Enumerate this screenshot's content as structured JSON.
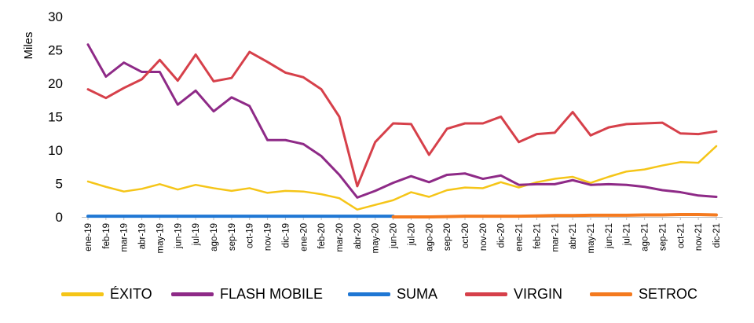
{
  "chart_data": {
    "type": "line",
    "ylabel": "Miles",
    "ylim": [
      0,
      30
    ],
    "yticks": [
      "0",
      "5",
      "10",
      "15",
      "20",
      "25",
      "30"
    ],
    "grid": false,
    "legend_position": "bottom",
    "categories": [
      "ene-19",
      "feb-19",
      "mar-19",
      "abr-19",
      "may-19",
      "jun-19",
      "jul-19",
      "ago-19",
      "sep-19",
      "oct-19",
      "nov-19",
      "dic-19",
      "ene-20",
      "feb-20",
      "mar-20",
      "abr-20",
      "may-20",
      "jun-20",
      "jul-20",
      "ago-20",
      "sep-20",
      "oct-20",
      "nov-20",
      "dic-20",
      "ene-21",
      "feb-21",
      "mar-21",
      "abr-21",
      "may-21",
      "jun-21",
      "jul-21",
      "ago-21",
      "sep-21",
      "oct-21",
      "nov-21",
      "dic-21"
    ],
    "series": [
      {
        "name": "ÉXITO",
        "color": "#F5C518",
        "width": 2.5,
        "values": [
          5.3,
          4.5,
          3.8,
          4.2,
          4.9,
          4.1,
          4.8,
          4.3,
          3.9,
          4.3,
          3.6,
          3.9,
          3.8,
          3.4,
          2.8,
          1.1,
          1.8,
          2.5,
          3.7,
          3.0,
          4.0,
          4.4,
          4.3,
          5.2,
          4.4,
          5.2,
          5.7,
          6.0,
          5.1,
          6.0,
          6.8,
          7.1,
          7.7,
          8.2,
          8.1,
          10.6
        ]
      },
      {
        "name": "FLASH MOBILE",
        "color": "#8E2A87",
        "width": 3,
        "values": [
          25.8,
          21.0,
          23.1,
          21.7,
          21.7,
          16.8,
          18.9,
          15.8,
          17.9,
          16.6,
          11.5,
          11.5,
          10.9,
          9.1,
          6.3,
          2.9,
          3.9,
          5.1,
          6.1,
          5.2,
          6.3,
          6.5,
          5.7,
          6.2,
          4.8,
          4.9,
          4.9,
          5.5,
          4.8,
          4.9,
          4.8,
          4.5,
          4.0,
          3.7,
          3.2,
          3.0
        ]
      },
      {
        "name": "SUMA",
        "color": "#1F77D4",
        "width": 4,
        "values": [
          0.1,
          0.1,
          0.1,
          0.1,
          0.1,
          0.1,
          0.1,
          0.1,
          0.1,
          0.1,
          0.1,
          0.1,
          0.1,
          0.1,
          0.1,
          0.1,
          0.1,
          0.1,
          null,
          null,
          null,
          null,
          null,
          null,
          null,
          null,
          null,
          null,
          null,
          null,
          null,
          null,
          null,
          null,
          null,
          null
        ]
      },
      {
        "name": "VIRGIN",
        "color": "#D6404A",
        "width": 3,
        "values": [
          19.1,
          17.8,
          19.3,
          20.6,
          23.5,
          20.4,
          24.3,
          20.3,
          20.8,
          24.7,
          23.2,
          21.6,
          20.9,
          19.1,
          15.0,
          4.6,
          11.2,
          14.0,
          13.9,
          9.3,
          13.2,
          14.0,
          14.0,
          15.0,
          11.2,
          12.4,
          12.6,
          15.7,
          12.2,
          13.4,
          13.9,
          14.0,
          14.1,
          12.5,
          12.4,
          12.8
        ]
      },
      {
        "name": "SETROC",
        "color": "#F47A1F",
        "width": 4,
        "values": [
          null,
          null,
          null,
          null,
          null,
          null,
          null,
          null,
          null,
          null,
          null,
          null,
          null,
          null,
          null,
          null,
          null,
          0.0,
          0.0,
          0.0,
          0.05,
          0.1,
          0.1,
          0.1,
          0.1,
          0.15,
          0.2,
          0.2,
          0.25,
          0.25,
          0.25,
          0.3,
          0.3,
          0.35,
          0.35,
          0.3
        ]
      }
    ]
  }
}
